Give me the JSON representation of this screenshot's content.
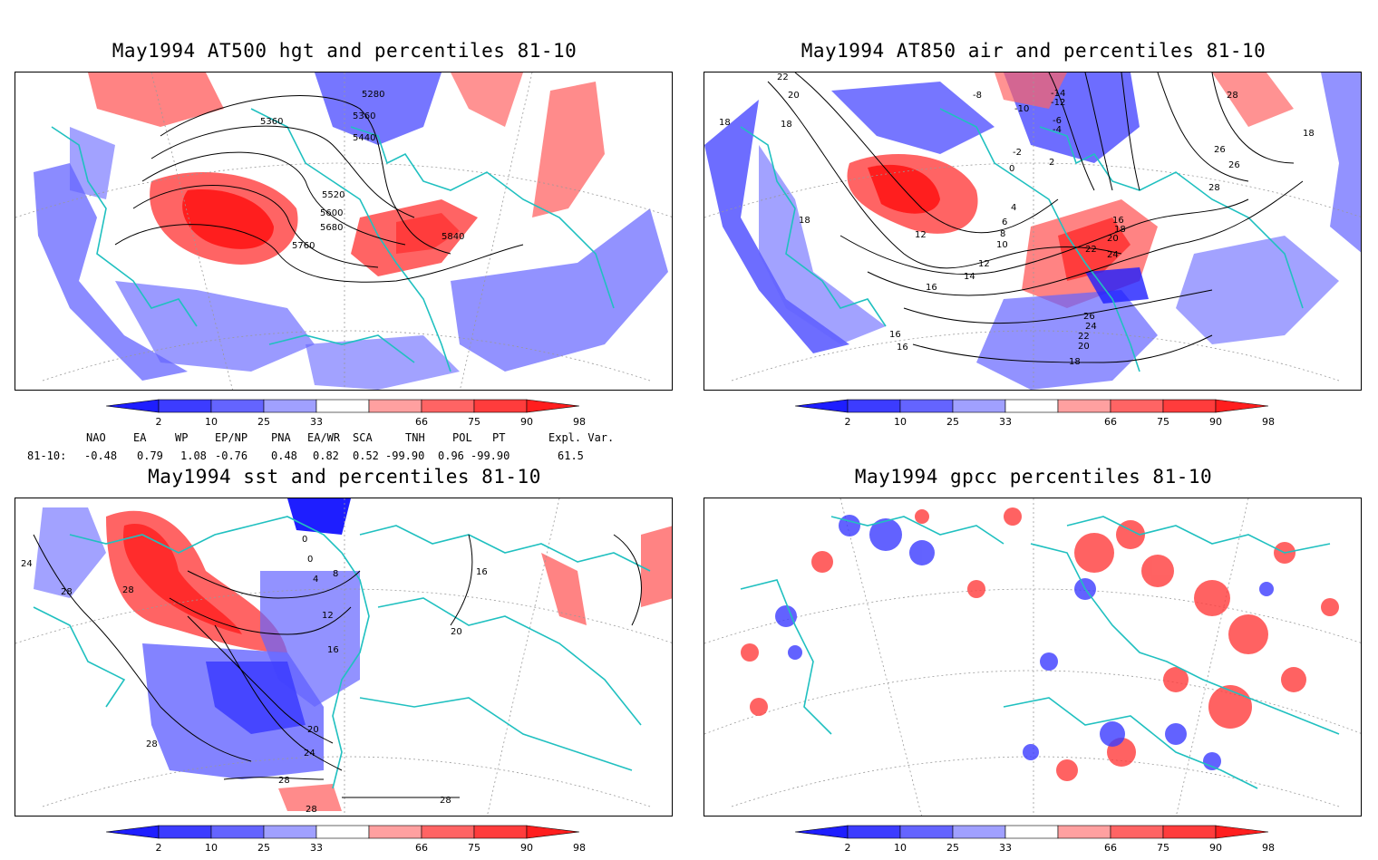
{
  "panels": [
    {
      "title": "May1994 AT500 hgt and percentiles 81-10",
      "contour_labels": [
        "5280",
        "5360",
        "5360",
        "5440",
        "5520",
        "5600",
        "5680",
        "5760",
        "5840"
      ]
    },
    {
      "title": "May1994 AT850 air and percentiles 81-10",
      "contour_labels": [
        "22",
        "20",
        "18",
        "18",
        "-8",
        "-14",
        "-12",
        "-10",
        "-6",
        "-4",
        "-2",
        "0",
        "2",
        "28",
        "26",
        "26",
        "28",
        "18",
        "18",
        "12",
        "4",
        "6",
        "8",
        "10",
        "12",
        "14",
        "16",
        "16",
        "18",
        "20",
        "22",
        "24",
        "26",
        "24",
        "22",
        "20",
        "18",
        "16",
        "16"
      ]
    },
    {
      "title": "May1994 sst and percentiles 81-10",
      "contour_labels": [
        "24",
        "28",
        "28",
        "0",
        "0",
        "4",
        "8",
        "12",
        "16",
        "16",
        "20",
        "20",
        "24",
        "28",
        "28",
        "28",
        "28"
      ]
    },
    {
      "title": "May1994 gpcc percentiles 81-10",
      "contour_labels": []
    }
  ],
  "colorbar": {
    "labels": [
      "2",
      "10",
      "25",
      "33",
      "66",
      "75",
      "90",
      "98"
    ],
    "colors": [
      "#1e1eff",
      "#3c3cff",
      "#6464ff",
      "#a0a0ff",
      "#ffffff",
      "#ffa0a0",
      "#ff6464",
      "#ff3c3c",
      "#ff1e1e"
    ]
  },
  "indices": {
    "headers": [
      "NAO",
      "EA",
      "WP",
      "EP/NP",
      "PNA",
      "EA/WR",
      "SCA",
      "TNH",
      "POL",
      "PT",
      "Expl. Var."
    ],
    "row_label": "81-10:",
    "values": [
      "-0.48",
      "0.79",
      "1.08",
      "-0.76",
      "0.48",
      "0.82",
      "0.52",
      "-99.90",
      "0.96",
      "-99.90",
      "61.5"
    ]
  }
}
